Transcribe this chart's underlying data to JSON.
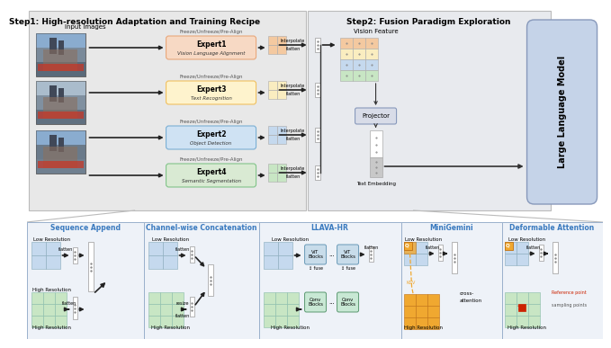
{
  "title_step1": "Step1: High-resolution Adaptation and Training Recipe",
  "title_step2": "Step2: Fusion Paradigm Exploration",
  "expert_names": [
    "Expert1",
    "Expert3",
    "Expert2",
    "Expert4"
  ],
  "expert_subtitles": [
    "Vision Language Alignment",
    "Text Recognition",
    "Object Detection",
    "Semantic Segmentation"
  ],
  "expert_colors": [
    "#f7d9c4",
    "#fef3cd",
    "#cfe2f3",
    "#d9ead3"
  ],
  "expert_border_colors": [
    "#e8a87c",
    "#f0c060",
    "#7bafd4",
    "#82c48a"
  ],
  "freeze_label": "Freeze/Unfreeze/Pre-Align",
  "bottom_titles": [
    "Sequence Append",
    "Channel-wise Concatenation",
    "LLAVA-HR",
    "MiniGemini",
    "Deformable Attention"
  ],
  "bottom_title_color": "#3a7abf",
  "step1_bg": "#e8e8e8",
  "step2_bg": "#e8eaee",
  "llm_color": "#c5d3e8",
  "projector_color": "#d8dce8",
  "grid_orange": "#f4c9a0",
  "grid_yellow": "#faedc0",
  "grid_blue": "#c5d9ee",
  "grid_green": "#c8e6c4",
  "grid_white": "#f0f0f0",
  "vit_color": "#c8dcea",
  "conv_color": "#c8e8d4",
  "mini_orange": "#f0a830",
  "ref_red": "#cc2200",
  "panel_bg": "#eef2f8",
  "panel_border": "#9ab0cc"
}
